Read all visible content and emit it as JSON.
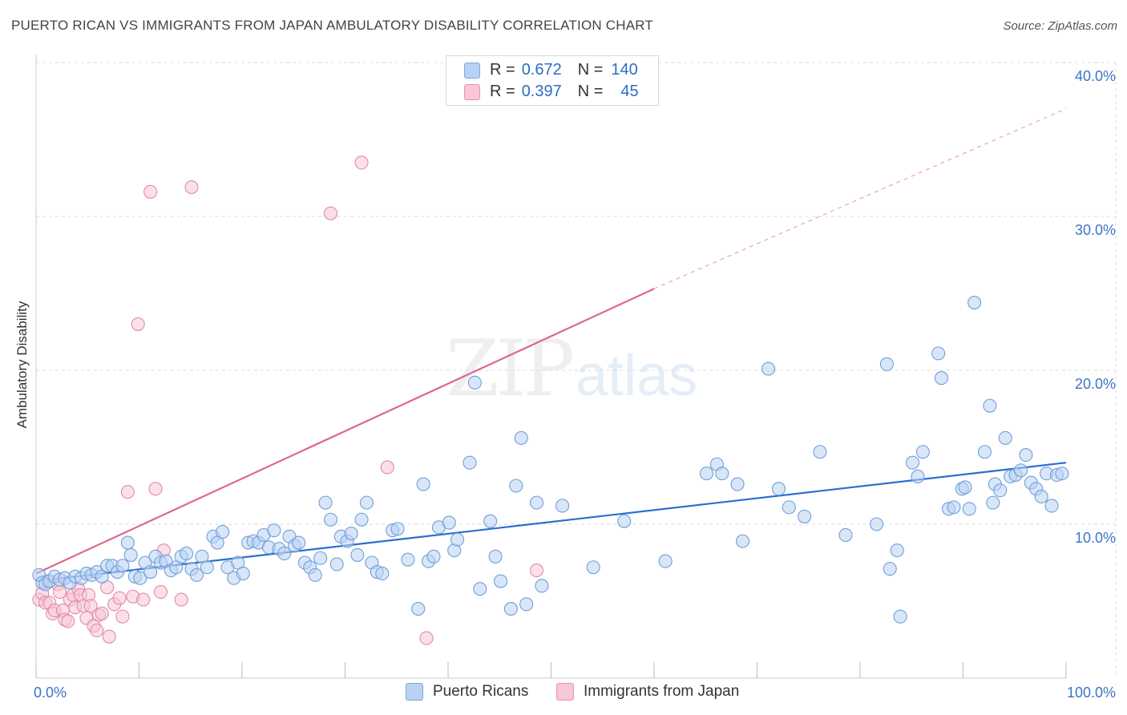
{
  "header": {
    "title": "PUERTO RICAN VS IMMIGRANTS FROM JAPAN AMBULATORY DISABILITY CORRELATION CHART",
    "source": "Source: ZipAtlas.com"
  },
  "watermark": {
    "zip": "ZIP",
    "atlas": "atlas"
  },
  "stats_legend": {
    "rows": [
      {
        "r_label": "R =",
        "r_value": "0.672",
        "n_label": "N =",
        "n_value": "140"
      },
      {
        "r_label": "R =",
        "r_value": "0.397",
        "n_label": "N =",
        "n_value": "45"
      }
    ]
  },
  "colors": {
    "blue_fill": "#b9d2f3",
    "blue_stroke": "#6f9fdb",
    "blue_line": "#2a6fd1",
    "pink_fill": "#f8c6d5",
    "pink_stroke": "#e38aa8",
    "pink_line": "#e06690",
    "axis_text": "#3b74c9",
    "grid": "#dddddd"
  },
  "chart_data": {
    "type": "scatter",
    "title": "PUERTO RICAN VS IMMIGRANTS FROM JAPAN AMBULATORY DISABILITY CORRELATION CHART",
    "xlabel": "",
    "ylabel": "Ambulatory Disability",
    "xlim": [
      0,
      100
    ],
    "ylim": [
      0,
      42
    ],
    "x_tick_labels": [
      {
        "value": 0,
        "label": "0.0%"
      },
      {
        "value": 100,
        "label": "100.0%"
      }
    ],
    "y_tick_labels": [
      {
        "value": 10,
        "label": "10.0%"
      },
      {
        "value": 20,
        "label": "20.0%"
      },
      {
        "value": 30,
        "label": "30.0%"
      },
      {
        "value": 40,
        "label": "40.0%"
      }
    ],
    "legend": [
      "Puerto Ricans",
      "Immigrants from Japan"
    ],
    "series": [
      {
        "name": "Puerto Ricans",
        "r": 0.672,
        "n": 140,
        "trend": {
          "x1": 0,
          "y1": 6.3,
          "x2": 100,
          "y2": 14.0
        },
        "points": [
          [
            0.3,
            6.7
          ],
          [
            0.6,
            6.2
          ],
          [
            0.9,
            6.1
          ],
          [
            1.3,
            6.3
          ],
          [
            1.8,
            6.6
          ],
          [
            2.3,
            6.4
          ],
          [
            2.8,
            6.5
          ],
          [
            3.3,
            6.2
          ],
          [
            3.8,
            6.6
          ],
          [
            4.4,
            6.5
          ],
          [
            4.9,
            6.8
          ],
          [
            5.4,
            6.7
          ],
          [
            5.9,
            6.9
          ],
          [
            6.4,
            6.6
          ],
          [
            6.9,
            7.3
          ],
          [
            7.4,
            7.3
          ],
          [
            7.9,
            6.9
          ],
          [
            8.4,
            7.3
          ],
          [
            8.9,
            8.8
          ],
          [
            9.2,
            8.0
          ],
          [
            9.6,
            6.6
          ],
          [
            10.1,
            6.5
          ],
          [
            10.6,
            7.5
          ],
          [
            11.1,
            6.9
          ],
          [
            11.6,
            7.9
          ],
          [
            12.1,
            7.5
          ],
          [
            12.6,
            7.6
          ],
          [
            13.1,
            7.0
          ],
          [
            13.6,
            7.2
          ],
          [
            14.1,
            7.9
          ],
          [
            14.6,
            8.1
          ],
          [
            15.1,
            7.1
          ],
          [
            15.6,
            6.7
          ],
          [
            16.1,
            7.9
          ],
          [
            16.6,
            7.2
          ],
          [
            17.2,
            9.2
          ],
          [
            17.6,
            8.8
          ],
          [
            18.1,
            9.5
          ],
          [
            18.6,
            7.2
          ],
          [
            19.2,
            6.5
          ],
          [
            19.6,
            7.5
          ],
          [
            20.1,
            6.8
          ],
          [
            20.6,
            8.8
          ],
          [
            21.1,
            8.9
          ],
          [
            21.6,
            8.8
          ],
          [
            22.1,
            9.3
          ],
          [
            22.6,
            8.5
          ],
          [
            23.1,
            9.6
          ],
          [
            23.6,
            8.4
          ],
          [
            24.1,
            8.1
          ],
          [
            24.6,
            9.2
          ],
          [
            25.1,
            8.6
          ],
          [
            25.5,
            8.8
          ],
          [
            26.1,
            7.5
          ],
          [
            26.6,
            7.2
          ],
          [
            27.1,
            6.7
          ],
          [
            27.6,
            7.8
          ],
          [
            28.1,
            11.4
          ],
          [
            28.6,
            10.3
          ],
          [
            29.2,
            7.4
          ],
          [
            29.6,
            9.2
          ],
          [
            30.2,
            8.9
          ],
          [
            30.6,
            9.4
          ],
          [
            31.2,
            8.0
          ],
          [
            31.6,
            10.3
          ],
          [
            32.1,
            11.4
          ],
          [
            32.6,
            7.5
          ],
          [
            33.1,
            6.9
          ],
          [
            33.6,
            6.8
          ],
          [
            34.6,
            9.6
          ],
          [
            35.1,
            9.7
          ],
          [
            36.1,
            7.7
          ],
          [
            37.1,
            4.5
          ],
          [
            37.6,
            12.6
          ],
          [
            38.1,
            7.6
          ],
          [
            38.6,
            7.9
          ],
          [
            39.1,
            9.8
          ],
          [
            40.1,
            10.1
          ],
          [
            40.6,
            8.3
          ],
          [
            40.9,
            9.0
          ],
          [
            42.1,
            14.0
          ],
          [
            42.6,
            19.2
          ],
          [
            43.1,
            5.8
          ],
          [
            44.1,
            10.2
          ],
          [
            44.6,
            7.9
          ],
          [
            45.1,
            6.3
          ],
          [
            46.1,
            4.5
          ],
          [
            46.6,
            12.5
          ],
          [
            47.1,
            15.6
          ],
          [
            47.6,
            4.8
          ],
          [
            48.6,
            11.4
          ],
          [
            49.1,
            6.0
          ],
          [
            51.1,
            11.2
          ],
          [
            54.1,
            7.2
          ],
          [
            57.1,
            10.2
          ],
          [
            61.1,
            7.6
          ],
          [
            65.1,
            13.3
          ],
          [
            66.1,
            13.9
          ],
          [
            66.6,
            13.3
          ],
          [
            68.1,
            12.6
          ],
          [
            68.6,
            8.9
          ],
          [
            71.1,
            20.1
          ],
          [
            72.1,
            12.3
          ],
          [
            73.1,
            11.1
          ],
          [
            74.6,
            10.5
          ],
          [
            76.1,
            14.7
          ],
          [
            78.6,
            9.3
          ],
          [
            81.6,
            10.0
          ],
          [
            82.6,
            20.4
          ],
          [
            82.9,
            7.1
          ],
          [
            83.6,
            8.3
          ],
          [
            83.9,
            4.0
          ],
          [
            85.1,
            14.0
          ],
          [
            85.6,
            13.1
          ],
          [
            86.1,
            14.7
          ],
          [
            87.6,
            21.1
          ],
          [
            87.9,
            19.5
          ],
          [
            88.6,
            11.0
          ],
          [
            89.1,
            11.1
          ],
          [
            89.9,
            12.3
          ],
          [
            90.2,
            12.4
          ],
          [
            90.6,
            11.0
          ],
          [
            91.1,
            24.4
          ],
          [
            92.1,
            14.7
          ],
          [
            92.6,
            17.7
          ],
          [
            92.9,
            11.4
          ],
          [
            93.1,
            12.6
          ],
          [
            93.6,
            12.2
          ],
          [
            94.1,
            15.6
          ],
          [
            94.6,
            13.1
          ],
          [
            95.1,
            13.2
          ],
          [
            95.6,
            13.5
          ],
          [
            96.1,
            14.5
          ],
          [
            96.6,
            12.7
          ],
          [
            97.1,
            12.3
          ],
          [
            97.6,
            11.8
          ],
          [
            98.1,
            13.3
          ],
          [
            98.6,
            11.2
          ],
          [
            99.1,
            13.2
          ],
          [
            99.6,
            13.3
          ]
        ]
      },
      {
        "name": "Immigrants from Japan",
        "r": 0.397,
        "n": 45,
        "trend": {
          "x1": 0,
          "y1": 6.8,
          "x2": 60,
          "y2": 25.3,
          "dash_to_x": 100,
          "dash_to_y": 37.0
        },
        "points": [
          [
            0.3,
            5.1
          ],
          [
            0.6,
            5.5
          ],
          [
            0.9,
            4.9
          ],
          [
            1.1,
            6.3
          ],
          [
            1.3,
            4.9
          ],
          [
            1.6,
            4.2
          ],
          [
            1.8,
            4.4
          ],
          [
            2.1,
            6.1
          ],
          [
            2.3,
            5.6
          ],
          [
            2.6,
            4.4
          ],
          [
            2.8,
            3.8
          ],
          [
            3.1,
            3.7
          ],
          [
            3.3,
            5.1
          ],
          [
            3.6,
            5.4
          ],
          [
            3.8,
            4.6
          ],
          [
            4.1,
            5.8
          ],
          [
            4.3,
            5.4
          ],
          [
            4.6,
            4.7
          ],
          [
            4.9,
            3.9
          ],
          [
            5.1,
            5.4
          ],
          [
            5.3,
            4.7
          ],
          [
            5.6,
            3.4
          ],
          [
            5.9,
            3.1
          ],
          [
            6.1,
            4.1
          ],
          [
            6.4,
            4.2
          ],
          [
            6.9,
            5.9
          ],
          [
            7.1,
            2.7
          ],
          [
            7.6,
            4.8
          ],
          [
            8.1,
            5.2
          ],
          [
            8.4,
            4.0
          ],
          [
            8.9,
            12.1
          ],
          [
            9.4,
            5.3
          ],
          [
            9.9,
            23.0
          ],
          [
            10.4,
            5.1
          ],
          [
            11.1,
            31.6
          ],
          [
            11.6,
            12.3
          ],
          [
            12.1,
            5.6
          ],
          [
            12.4,
            8.3
          ],
          [
            14.1,
            5.1
          ],
          [
            15.1,
            31.9
          ],
          [
            28.6,
            30.2
          ],
          [
            31.6,
            33.5
          ],
          [
            34.1,
            13.7
          ],
          [
            37.9,
            2.6
          ],
          [
            48.6,
            7.0
          ]
        ]
      }
    ]
  },
  "bottom_legend": {
    "items": [
      "Puerto Ricans",
      "Immigrants from Japan"
    ]
  }
}
